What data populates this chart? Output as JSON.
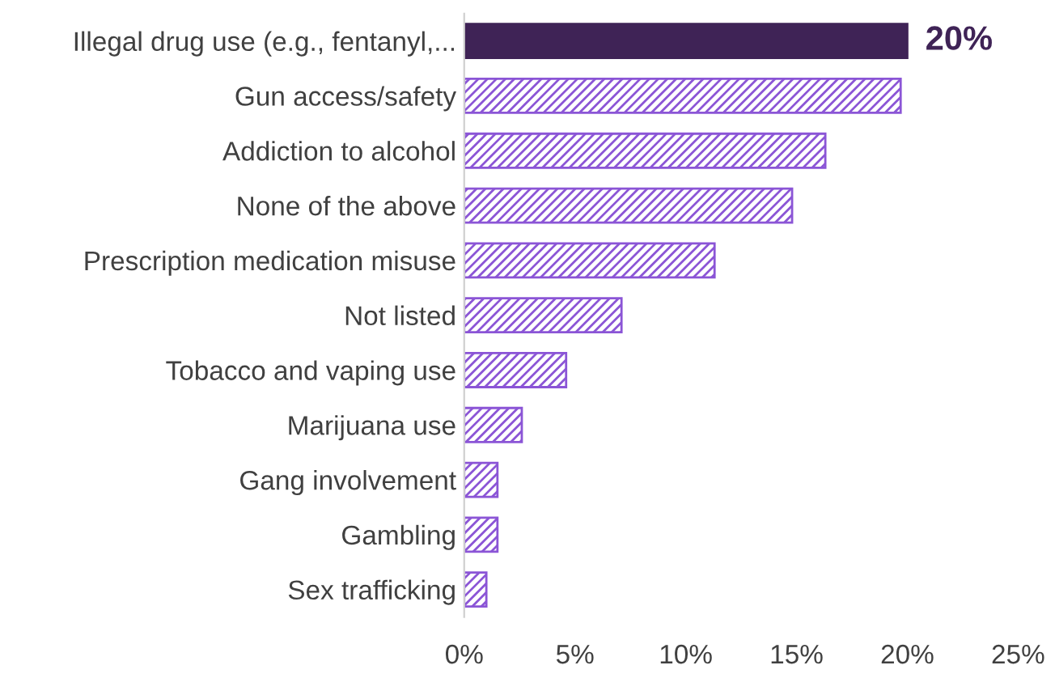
{
  "chart_data": {
    "type": "bar",
    "orientation": "horizontal",
    "categories": [
      "Illegal drug use (e.g., fentanyl,...",
      "Gun access/safety",
      "Addiction to alcohol",
      "None of the above",
      "Prescription medication misuse",
      "Not listed",
      "Tobacco and vaping use",
      "Marijuana use",
      "Gang involvement",
      "Gambling",
      "Sex trafficking"
    ],
    "values": [
      20,
      19.7,
      16.3,
      14.8,
      11.3,
      7.1,
      4.6,
      2.6,
      1.5,
      1.5,
      1.0
    ],
    "colors": [
      "#3f2356",
      "#8b55d6",
      "#8b55d6",
      "#8b55d6",
      "#8b55d6",
      "#8b55d6",
      "#8b55d6",
      "#8b55d6",
      "#8b55d6",
      "#8b55d6",
      "#8b55d6"
    ],
    "value_labels": [
      "20%",
      null,
      null,
      null,
      null,
      null,
      null,
      null,
      null,
      null,
      null
    ],
    "xlim": [
      0,
      25
    ],
    "xticks": [
      {
        "value": 0,
        "label": "0%"
      },
      {
        "value": 5,
        "label": "5%"
      },
      {
        "value": 10,
        "label": "10%"
      },
      {
        "value": 15,
        "label": "15%"
      },
      {
        "value": 20,
        "label": "20%"
      },
      {
        "value": 25,
        "label": "25%"
      }
    ],
    "grid": false,
    "legend": false
  }
}
